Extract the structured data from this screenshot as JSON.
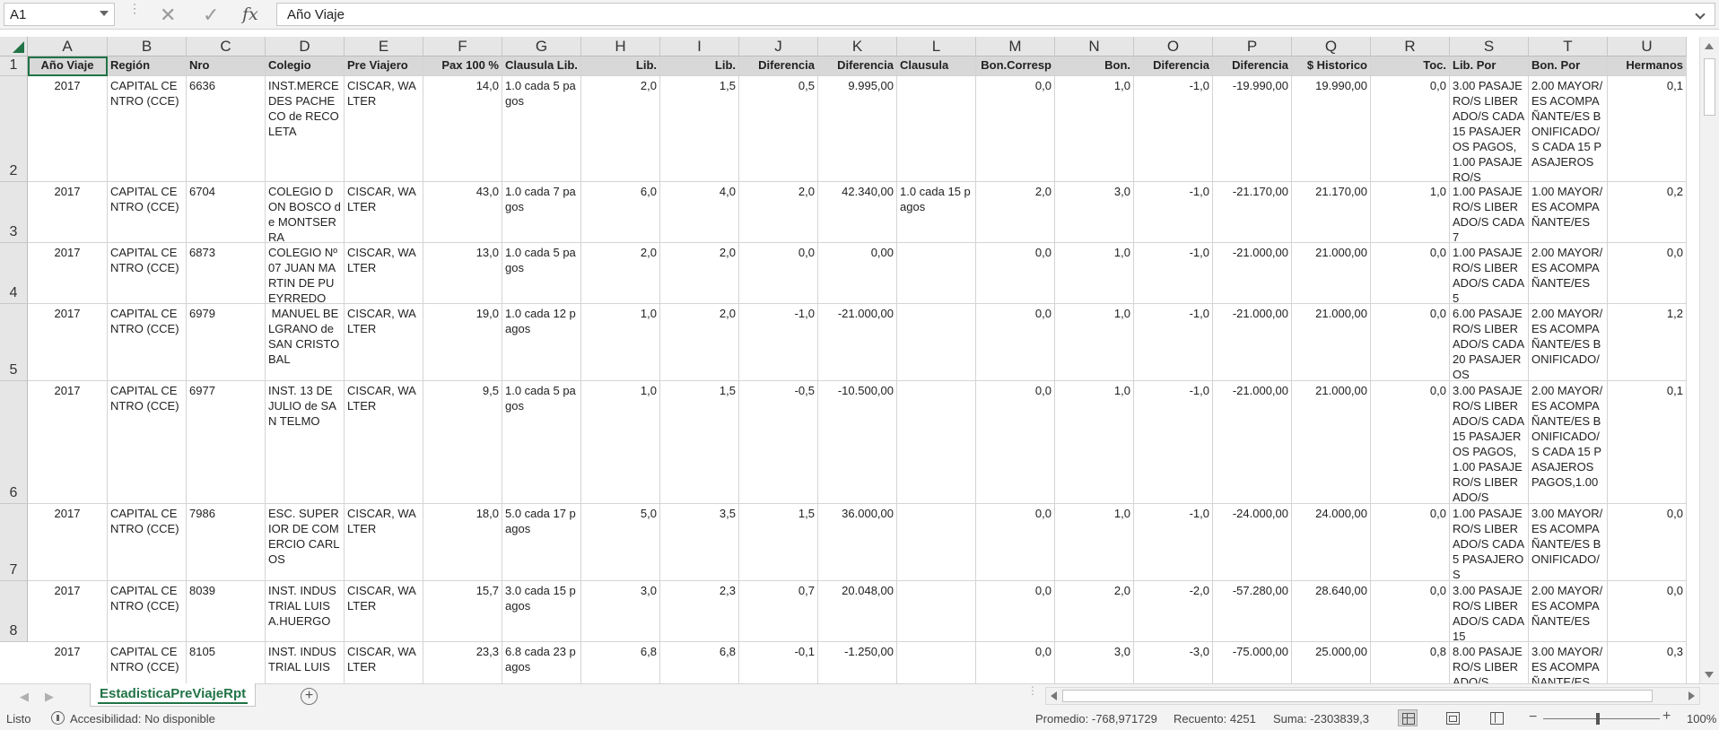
{
  "formula_bar": {
    "name_box": "A1",
    "formula_value": "Año Viaje"
  },
  "columns": [
    "A",
    "B",
    "C",
    "D",
    "E",
    "F",
    "G",
    "H",
    "I",
    "J",
    "K",
    "L",
    "M",
    "N",
    "O",
    "P",
    "Q",
    "R",
    "S",
    "T",
    "U"
  ],
  "row_numbers": [
    "1",
    "2",
    "3",
    "4",
    "5",
    "6",
    "7",
    "8"
  ],
  "header_row": [
    "Año Viaje",
    "Región",
    "Nro",
    "Colegio",
    "Pre Viajero",
    "Pax 100 %",
    "Clausula Lib.",
    "Lib.",
    "Lib.",
    "Diferencia",
    "Diferencia",
    "Clausula",
    "Bon.Corresp",
    "Bon.",
    "Diferencia",
    "Diferencia",
    "$ Historico",
    "Toc.",
    "Lib. Por",
    "Bon. Por",
    "Hermanos"
  ],
  "rows": [
    [
      "2017",
      "CAPITAL CENTRO (CCE)",
      "6636",
      "INST.MERCEDES PACHECO de RECOLETA",
      "CISCAR, WALTER",
      "14,0",
      "1.0 cada 5 pagos",
      "2,0",
      "1,5",
      "0,5",
      "9.995,00",
      "",
      "0,0",
      "1,0",
      "-1,0",
      "-19.990,00",
      "19.990,00",
      "0,0",
      "3.00 PASAJERO/S LIBERADO/S CADA 15 PASAJEROS PAGOS,1.00 PASAJERO/S",
      "2.00 MAYOR/ES ACOMPAÑANTE/ES BONIFICADO/S CADA 15 PASAJEROS",
      "0,1"
    ],
    [
      "2017",
      "CAPITAL CENTRO (CCE)",
      "6704",
      "COLEGIO DON BOSCO de MONTSERRA",
      "CISCAR, WALTER",
      "43,0",
      "1.0 cada 7 pagos",
      "6,0",
      "4,0",
      "2,0",
      "42.340,00",
      "1.0 cada 15 pagos",
      "2,0",
      "3,0",
      "-1,0",
      "-21.170,00",
      "21.170,00",
      "1,0",
      "1.00 PASAJERO/S LIBERADO/S CADA 7",
      "1.00 MAYOR/ES ACOMPAÑANTE/ES",
      "0,2"
    ],
    [
      "2017",
      "CAPITAL CENTRO (CCE)",
      "6873",
      "COLEGIO Nº 07 JUAN MARTIN DE PUEYRREDO",
      "CISCAR, WALTER",
      "13,0",
      "1.0 cada 5 pagos",
      "2,0",
      "2,0",
      "0,0",
      "0,00",
      "",
      "0,0",
      "1,0",
      "-1,0",
      "-21.000,00",
      "21.000,00",
      "0,0",
      "1.00 PASAJERO/S LIBERADO/S CADA 5",
      "2.00 MAYOR/ES ACOMPAÑANTE/ES",
      "0,0"
    ],
    [
      "2017",
      "CAPITAL CENTRO (CCE)",
      "6979",
      " MANUEL BELGRANO de SAN CRISTOBAL",
      "CISCAR, WALTER",
      "19,0",
      "1.0 cada 12 pagos",
      "1,0",
      "2,0",
      "-1,0",
      "-21.000,00",
      "",
      "0,0",
      "1,0",
      "-1,0",
      "-21.000,00",
      "21.000,00",
      "0,0",
      "6.00 PASAJERO/S LIBERADO/S CADA 20 PASAJEROS",
      "2.00 MAYOR/ES ACOMPAÑANTE/ES BONIFICADO/",
      "1,2"
    ],
    [
      "2017",
      "CAPITAL CENTRO (CCE)",
      "6977",
      "INST. 13 DE JULIO de SAN TELMO",
      "CISCAR, WALTER",
      "9,5",
      "1.0 cada 5 pagos",
      "1,0",
      "1,5",
      "-0,5",
      "-10.500,00",
      "",
      "0,0",
      "1,0",
      "-1,0",
      "-21.000,00",
      "21.000,00",
      "0,0",
      "3.00 PASAJERO/S LIBERADO/S CADA 15 PASAJEROS PAGOS,1.00 PASAJERO/S LIBERADO/S",
      "2.00 MAYOR/ES ACOMPAÑANTE/ES BONIFICADO/S CADA 15 PASAJEROS PAGOS,1.00",
      "0,1"
    ],
    [
      "2017",
      "CAPITAL CENTRO (CCE)",
      "7986",
      "ESC. SUPERIOR DE COMERCIO CARLOS",
      "CISCAR, WALTER",
      "18,0",
      "5.0 cada 17 pagos",
      "5,0",
      "3,5",
      "1,5",
      "36.000,00",
      "",
      "0,0",
      "1,0",
      "-1,0",
      "-24.000,00",
      "24.000,00",
      "0,0",
      "1.00 PASAJERO/S LIBERADO/S CADA 5 PASAJEROS",
      "3.00 MAYOR/ES ACOMPAÑANTE/ES BONIFICADO/",
      "0,0"
    ],
    [
      "2017",
      "CAPITAL CENTRO (CCE)",
      "8039",
      "INST. INDUSTRIAL LUIS A.HUERGO",
      "CISCAR, WALTER",
      "15,7",
      "3.0 cada 15 pagos",
      "3,0",
      "2,3",
      "0,7",
      "20.048,00",
      "",
      "0,0",
      "2,0",
      "-2,0",
      "-57.280,00",
      "28.640,00",
      "0,0",
      "3.00 PASAJERO/S LIBERADO/S CADA 15",
      "2.00 MAYOR/ES ACOMPAÑANTE/ES",
      "0,0"
    ],
    [
      "2017",
      "CAPITAL CENTRO (CCE)",
      "8105",
      "INST. INDUSTRIAL LUIS",
      "CISCAR, WALTER",
      "23,3",
      "6.8 cada 23 pagos",
      "6,8",
      "6,8",
      "-0,1",
      "-1.250,00",
      "",
      "0,0",
      "3,0",
      "-3,0",
      "-75.000,00",
      "25.000,00",
      "0,8",
      "8.00 PASAJERO/S LIBERADO/S",
      "3.00 MAYOR/ES ACOMPAÑANTE/ES",
      "0,3"
    ]
  ],
  "sheet_tab": "EstadisticaPreViajeRpt",
  "status": {
    "ready": "Listo",
    "accessibility": "Accesibilidad: No disponible",
    "average": "Promedio: -768,971729",
    "count": "Recuento: 4251",
    "sum": "Suma: -2303839,3",
    "zoom": "100%"
  },
  "icons": {
    "cancel": "close-icon",
    "enter": "check-icon",
    "function": "fx-icon"
  },
  "colors": {
    "accent": "#217346"
  }
}
